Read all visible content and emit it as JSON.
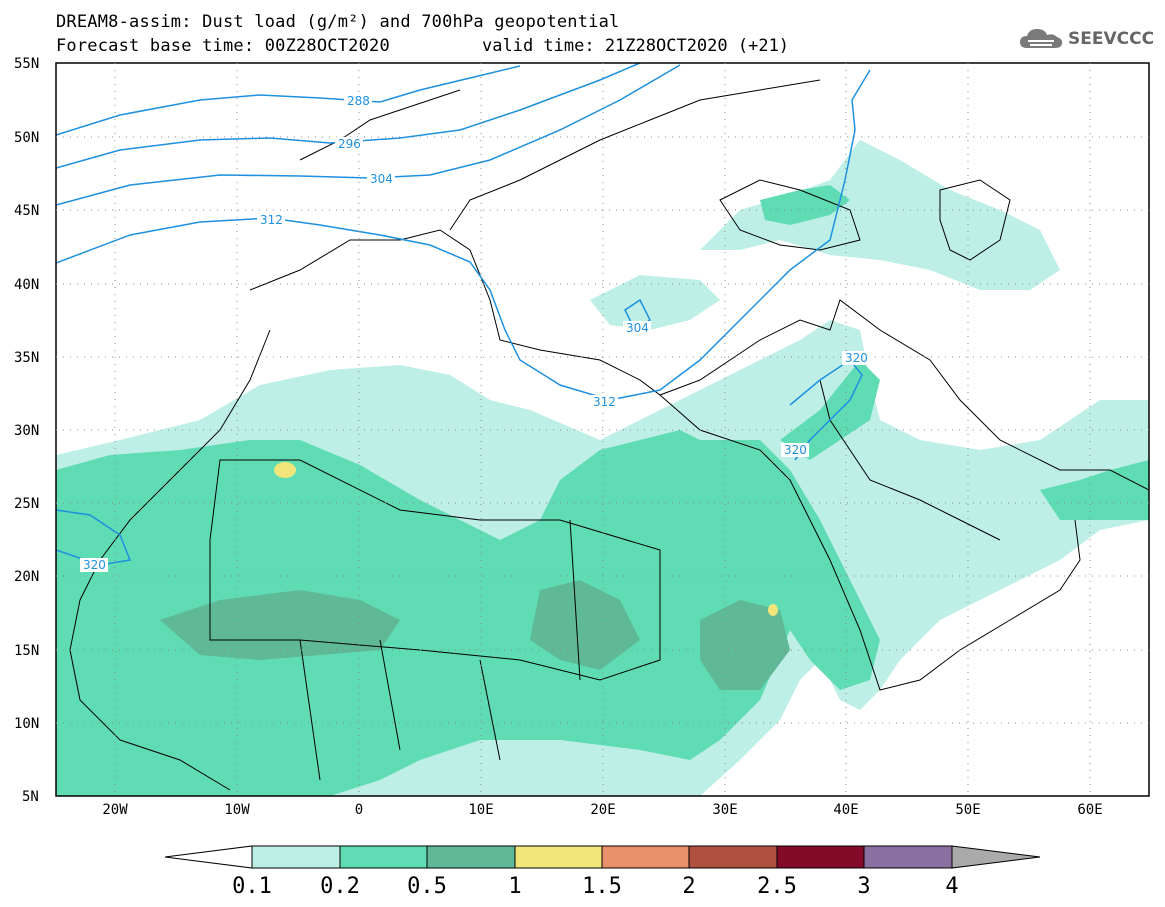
{
  "title": {
    "line1": "DREAM8-assim: Dust load (g/m²) and 700hPa geopotential",
    "line2": "Forecast base time: 00Z28OCT2020",
    "valid": "valid time: 21Z28OCT2020 (+21)"
  },
  "logo": {
    "icon": "cloud-icon",
    "text": "SEEVCCC"
  },
  "map": {
    "lat_labels": [
      "55N",
      "50N",
      "45N",
      "40N",
      "35N",
      "30N",
      "25N",
      "20N",
      "15N",
      "10N",
      "5N"
    ],
    "lon_labels": [
      "20W",
      "10W",
      "0",
      "10E",
      "20E",
      "30E",
      "40E",
      "50E",
      "60E"
    ],
    "contour_color": "#1e90e0",
    "contour_labels": [
      "288",
      "296",
      "304",
      "312",
      "304",
      "312",
      "320",
      "320",
      "320"
    ]
  },
  "colorbar": {
    "labels": [
      "0.1",
      "0.2",
      "0.5",
      "1",
      "1.5",
      "2",
      "2.5",
      "3",
      "4"
    ],
    "colors": [
      "#ffffff",
      "#bdefe6",
      "#5fdcb4",
      "#5fb896",
      "#f2e67a",
      "#e8906a",
      "#b05040",
      "#840a2a",
      "#8a6fa0",
      "#aaaaaa"
    ]
  }
}
